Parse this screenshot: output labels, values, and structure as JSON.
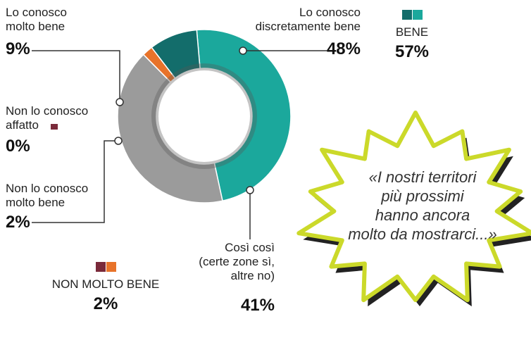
{
  "chart_data": {
    "type": "pie",
    "donut": true,
    "categories": [
      "Lo conosco\ndiscretamente bene",
      "Così così\n(certe zone sì,\naltre no)",
      "Non lo conosco\nmolto bene",
      "Non lo conosco\naffatto",
      "Lo conosco\nmolto bene"
    ],
    "values": [
      48,
      41,
      2,
      0,
      9
    ],
    "value_labels": [
      "48%",
      "41%",
      "2%",
      "0%",
      "9%"
    ],
    "colors": [
      "#1ba89c",
      "#9b9b9b",
      "#e8732a",
      "#7a2a3a",
      "#136d6b"
    ],
    "groups": [
      {
        "name": "BENE",
        "value": 57,
        "value_label": "57%",
        "colors": [
          "#136d6b",
          "#1ba89c"
        ]
      },
      {
        "name": "NON MOLTO BENE",
        "value": 2,
        "value_label": "2%",
        "colors": [
          "#7a2a3a",
          "#e8732a"
        ]
      }
    ],
    "annotations": [
      "«I nostri territori\npiù prossimi\nhanno ancora\nmolto da mostrarci...»"
    ]
  }
}
